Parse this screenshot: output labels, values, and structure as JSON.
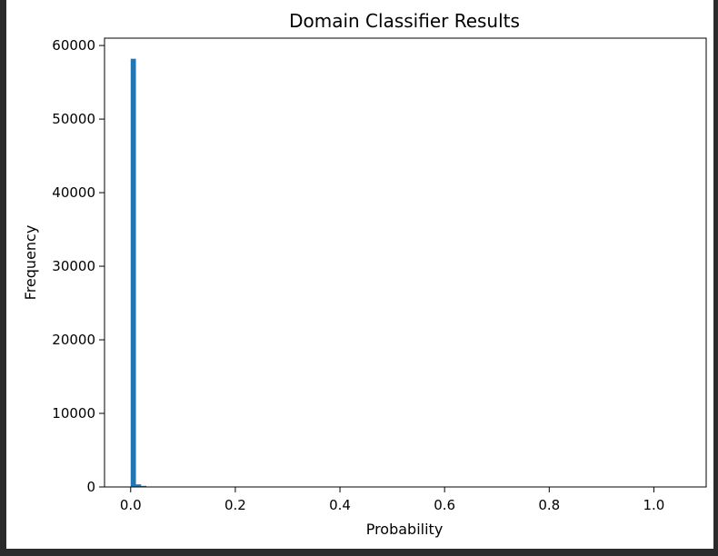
{
  "chart_data": {
    "type": "bar",
    "title": "Domain Classifier Results",
    "xlabel": "Probability",
    "ylabel": "Frequency",
    "xlim": [
      -0.05,
      1.1
    ],
    "ylim": [
      0,
      61000
    ],
    "xticks": [
      "0.0",
      "0.2",
      "0.4",
      "0.6",
      "0.8",
      "1.0"
    ],
    "xtick_values": [
      0.0,
      0.2,
      0.4,
      0.6,
      0.8,
      1.0
    ],
    "yticks": [
      "0",
      "10000",
      "20000",
      "30000",
      "40000",
      "50000",
      "60000"
    ],
    "ytick_values": [
      0,
      10000,
      20000,
      30000,
      40000,
      50000,
      60000
    ],
    "bin_width": 0.01,
    "bins": [
      {
        "x": 0.0,
        "value": 58200
      },
      {
        "x": 0.01,
        "value": 350
      },
      {
        "x": 0.02,
        "value": 150
      },
      {
        "x": 0.03,
        "value": 60
      },
      {
        "x": 0.04,
        "value": 30
      },
      {
        "x": 0.05,
        "value": 15
      }
    ],
    "bar_color": "#1f77b4",
    "grid": false,
    "legend": "none"
  }
}
